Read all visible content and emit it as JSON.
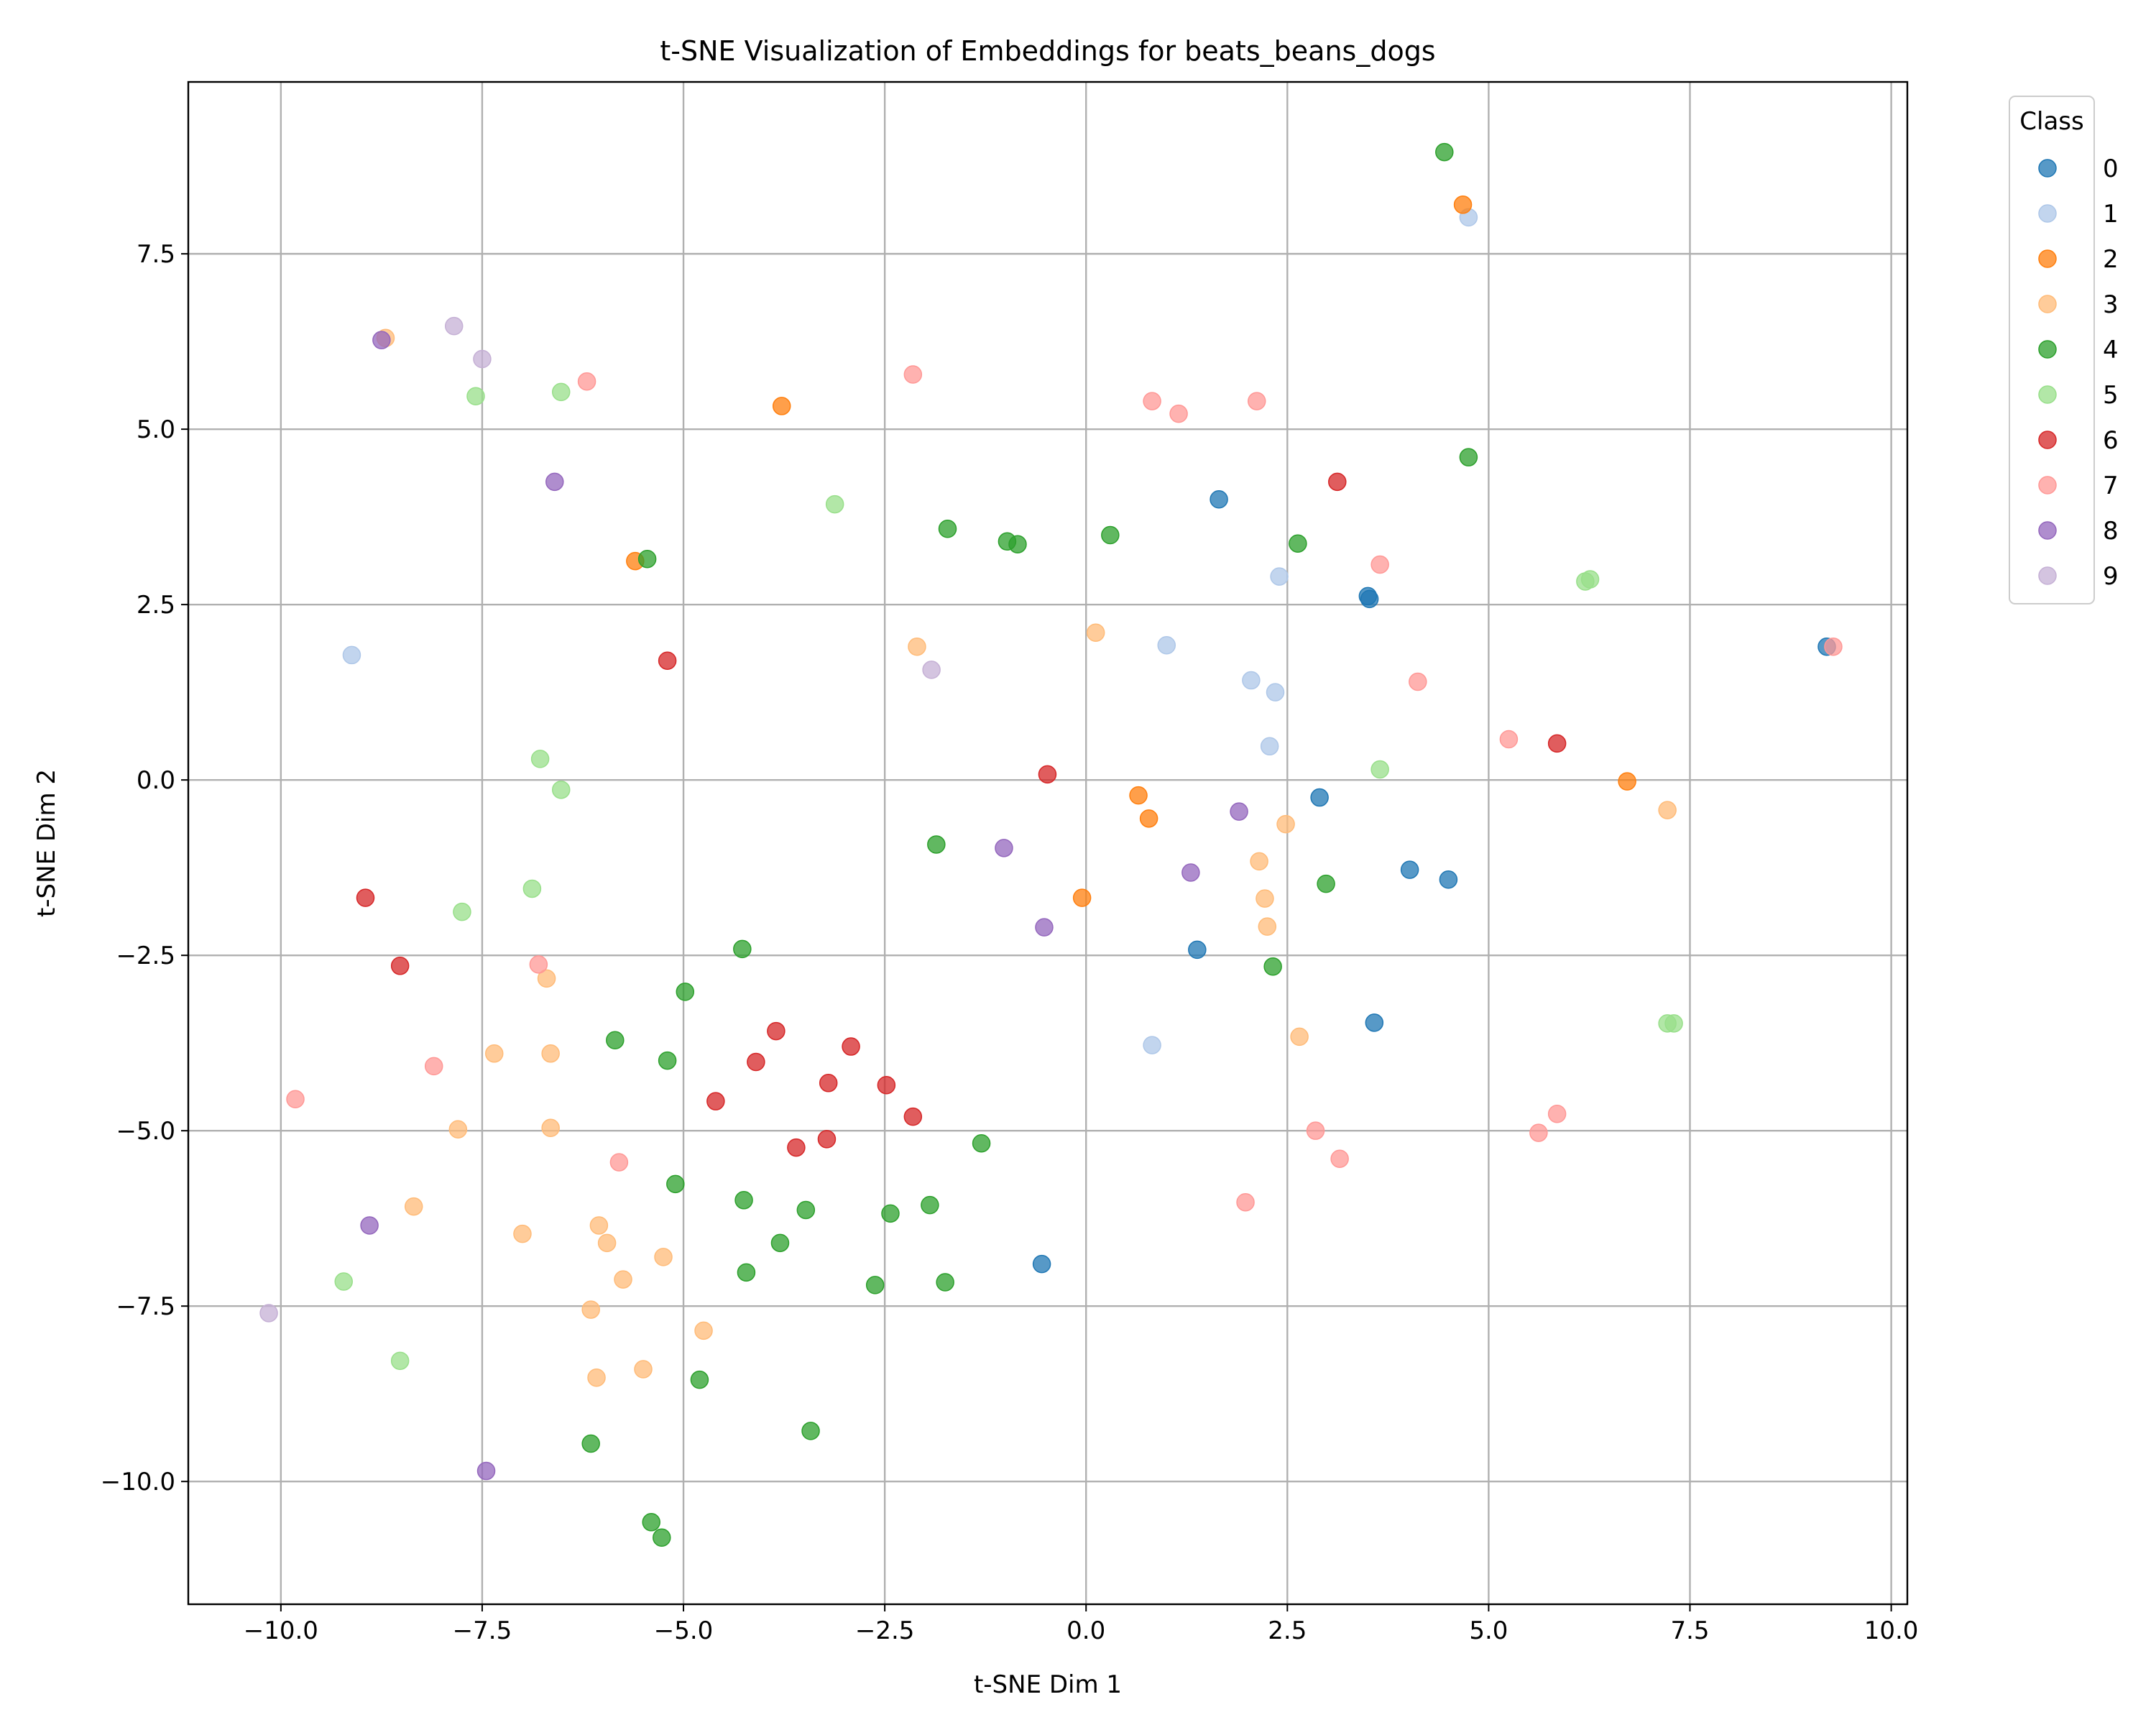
{
  "chart_data": {
    "type": "scatter",
    "title": "t-SNE Visualization of Embeddings for beats_beans_dogs",
    "xlabel": "t-SNE Dim 1",
    "ylabel": "t-SNE Dim 2",
    "xlim": [
      -11.15,
      10.2
    ],
    "ylim": [
      -11.75,
      9.95
    ],
    "x_ticks": [
      -10.0,
      -7.5,
      -5.0,
      -2.5,
      0.0,
      2.5,
      5.0,
      7.5,
      10.0
    ],
    "x_tick_labels": [
      "−10.0",
      "−7.5",
      "−5.0",
      "−2.5",
      "0.0",
      "2.5",
      "5.0",
      "7.5",
      "10.0"
    ],
    "y_ticks": [
      -10.0,
      -7.5,
      -5.0,
      -2.5,
      0.0,
      2.5,
      5.0,
      7.5
    ],
    "y_tick_labels": [
      "−10.0",
      "−7.5",
      "−5.0",
      "−2.5",
      "0.0",
      "2.5",
      "5.0",
      "7.5"
    ],
    "grid": true,
    "legend": {
      "title": "Class",
      "placement": "outside-top-right"
    },
    "series": [
      {
        "name": "0",
        "color": "#1f77b4",
        "points": [
          [
            1.65,
            4.0
          ],
          [
            3.5,
            2.62
          ],
          [
            3.52,
            2.58
          ],
          [
            9.2,
            1.9
          ],
          [
            2.9,
            -0.25
          ],
          [
            4.02,
            -1.28
          ],
          [
            4.5,
            -1.42
          ],
          [
            1.38,
            -2.42
          ],
          [
            3.58,
            -3.46
          ],
          [
            -0.55,
            -6.9
          ]
        ]
      },
      {
        "name": "1",
        "color": "#aec7e8",
        "points": [
          [
            4.75,
            8.02
          ],
          [
            2.4,
            2.9
          ],
          [
            -9.12,
            1.78
          ],
          [
            1.0,
            1.92
          ],
          [
            2.05,
            1.42
          ],
          [
            2.35,
            1.25
          ],
          [
            2.28,
            0.48
          ],
          [
            0.82,
            -3.78
          ]
        ]
      },
      {
        "name": "2",
        "color": "#ff7f0e",
        "points": [
          [
            4.68,
            8.2
          ],
          [
            -3.78,
            5.33
          ],
          [
            -5.6,
            3.12
          ],
          [
            0.65,
            -0.22
          ],
          [
            0.78,
            -0.55
          ],
          [
            -0.05,
            -1.68
          ],
          [
            6.72,
            -0.02
          ]
        ]
      },
      {
        "name": "3",
        "color": "#ffbb78",
        "points": [
          [
            -8.7,
            6.3
          ],
          [
            -2.1,
            1.9
          ],
          [
            0.12,
            2.1
          ],
          [
            7.22,
            -0.43
          ],
          [
            2.48,
            -0.63
          ],
          [
            2.15,
            -1.16
          ],
          [
            2.22,
            -1.69
          ],
          [
            2.25,
            -2.09
          ],
          [
            2.65,
            -3.66
          ],
          [
            -6.7,
            -2.83
          ],
          [
            -7.35,
            -3.9
          ],
          [
            -6.65,
            -3.9
          ],
          [
            -7.8,
            -4.98
          ],
          [
            -6.65,
            -4.96
          ],
          [
            -8.35,
            -6.08
          ],
          [
            -7.0,
            -6.47
          ],
          [
            -6.05,
            -6.35
          ],
          [
            -5.95,
            -6.6
          ],
          [
            -5.25,
            -6.8
          ],
          [
            -5.75,
            -7.12
          ],
          [
            -6.15,
            -7.55
          ],
          [
            -4.75,
            -7.85
          ],
          [
            -6.08,
            -8.52
          ],
          [
            -5.5,
            -8.4
          ]
        ]
      },
      {
        "name": "4",
        "color": "#2ca02c",
        "points": [
          [
            4.45,
            8.95
          ],
          [
            4.75,
            4.6
          ],
          [
            -5.45,
            3.15
          ],
          [
            -1.72,
            3.58
          ],
          [
            -0.98,
            3.4
          ],
          [
            -0.85,
            3.36
          ],
          [
            0.3,
            3.49
          ],
          [
            2.63,
            3.37
          ],
          [
            -1.86,
            -0.92
          ],
          [
            2.98,
            -1.48
          ],
          [
            2.32,
            -2.66
          ],
          [
            -4.27,
            -2.41
          ],
          [
            -4.98,
            -3.02
          ],
          [
            -5.85,
            -3.71
          ],
          [
            -5.2,
            -4.0
          ],
          [
            -1.3,
            -5.18
          ],
          [
            -5.1,
            -5.76
          ],
          [
            -4.25,
            -5.99
          ],
          [
            -3.48,
            -6.13
          ],
          [
            -2.43,
            -6.18
          ],
          [
            -1.94,
            -6.06
          ],
          [
            -3.8,
            -6.6
          ],
          [
            -4.22,
            -7.02
          ],
          [
            -2.62,
            -7.2
          ],
          [
            -1.75,
            -7.16
          ],
          [
            -4.8,
            -8.55
          ],
          [
            -3.42,
            -9.28
          ],
          [
            -6.15,
            -9.46
          ],
          [
            -5.4,
            -10.58
          ],
          [
            -5.27,
            -10.8
          ]
        ]
      },
      {
        "name": "5",
        "color": "#98df8a",
        "points": [
          [
            -7.58,
            5.47
          ],
          [
            -6.52,
            5.53
          ],
          [
            -3.12,
            3.93
          ],
          [
            6.2,
            2.83
          ],
          [
            6.26,
            2.86
          ],
          [
            -6.78,
            0.3
          ],
          [
            -6.52,
            -0.14
          ],
          [
            3.65,
            0.15
          ],
          [
            -6.88,
            -1.55
          ],
          [
            -7.75,
            -1.88
          ],
          [
            7.22,
            -3.47
          ],
          [
            7.3,
            -3.47
          ],
          [
            -9.22,
            -7.15
          ],
          [
            -8.52,
            -8.28
          ]
        ]
      },
      {
        "name": "6",
        "color": "#d62728",
        "points": [
          [
            3.12,
            4.25
          ],
          [
            -5.2,
            1.7
          ],
          [
            -0.48,
            0.08
          ],
          [
            5.85,
            0.52
          ],
          [
            -8.95,
            -1.68
          ],
          [
            -8.52,
            -2.65
          ],
          [
            -3.85,
            -3.58
          ],
          [
            -2.92,
            -3.8
          ],
          [
            -4.1,
            -4.02
          ],
          [
            -3.2,
            -4.32
          ],
          [
            -2.48,
            -4.35
          ],
          [
            -4.6,
            -4.58
          ],
          [
            -2.15,
            -4.8
          ],
          [
            -3.6,
            -5.24
          ],
          [
            -3.22,
            -5.12
          ]
        ]
      },
      {
        "name": "7",
        "color": "#ff9896",
        "points": [
          [
            -6.2,
            5.68
          ],
          [
            -2.15,
            5.78
          ],
          [
            0.82,
            5.4
          ],
          [
            1.15,
            5.22
          ],
          [
            2.12,
            5.4
          ],
          [
            3.65,
            3.07
          ],
          [
            4.12,
            1.4
          ],
          [
            5.25,
            0.58
          ],
          [
            9.28,
            1.9
          ],
          [
            -6.8,
            -2.63
          ],
          [
            -8.1,
            -4.08
          ],
          [
            -9.82,
            -4.55
          ],
          [
            -5.8,
            -5.45
          ],
          [
            2.85,
            -5.0
          ],
          [
            3.15,
            -5.4
          ],
          [
            5.85,
            -4.76
          ],
          [
            5.62,
            -5.03
          ],
          [
            1.98,
            -6.02
          ]
        ]
      },
      {
        "name": "8",
        "color": "#9467bd",
        "points": [
          [
            -8.75,
            6.27
          ],
          [
            -6.6,
            4.25
          ],
          [
            -1.02,
            -0.97
          ],
          [
            1.9,
            -0.45
          ],
          [
            1.3,
            -1.32
          ],
          [
            -0.52,
            -2.1
          ],
          [
            -8.9,
            -6.35
          ],
          [
            -7.45,
            -9.85
          ]
        ]
      },
      {
        "name": "9",
        "color": "#c5b0d5",
        "points": [
          [
            -7.85,
            6.47
          ],
          [
            -7.5,
            6.0
          ],
          [
            -1.92,
            1.57
          ],
          [
            -10.15,
            -7.6
          ]
        ]
      }
    ]
  }
}
